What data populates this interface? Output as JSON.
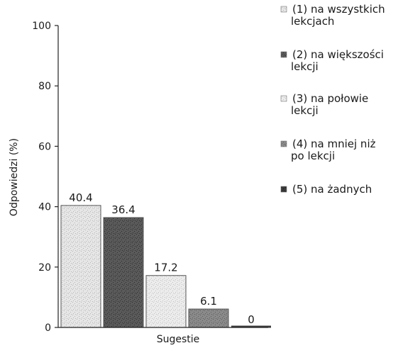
{
  "chart_data": {
    "type": "bar",
    "title": "",
    "xlabel": "Sugestie",
    "ylabel": "Odpowiedzi (%)",
    "ylim": [
      0,
      100
    ],
    "yticks": [
      0,
      20,
      40,
      60,
      80,
      100
    ],
    "grid": false,
    "legend_position": "right",
    "series": [
      {
        "name": "(1) na wszystkich lekcjach",
        "value": 40.4,
        "label": "40.4",
        "legend_lines": [
          "(1) na wszystkich",
          "lekcjach"
        ],
        "color": "#e6e6e6",
        "texture": "#b4b4b4"
      },
      {
        "name": "(2) na większości lekcji",
        "value": 36.4,
        "label": "36.4",
        "legend_lines": [
          "(2) na większości",
          "lekcji"
        ],
        "color": "#5a5a5a",
        "texture": "#2e2e2e"
      },
      {
        "name": "(3) na połowie lekcji",
        "value": 17.2,
        "label": "17.2",
        "legend_lines": [
          "(3) na połowie",
          "lekcji"
        ],
        "color": "#ececec",
        "texture": "#c0c0c0"
      },
      {
        "name": "(4) na mniej niż po lekcji",
        "value": 6.1,
        "label": "6.1",
        "legend_lines": [
          "(4) na mniej niż",
          "po lekcji"
        ],
        "color": "#8a8a8a",
        "texture": "#5c5c5c"
      },
      {
        "name": "(5) na żadnych",
        "value": 0,
        "label": "0",
        "legend_lines": [
          "(5) na żadnych"
        ],
        "color": "#3a3a3a",
        "texture": "#1a1a1a"
      }
    ]
  }
}
